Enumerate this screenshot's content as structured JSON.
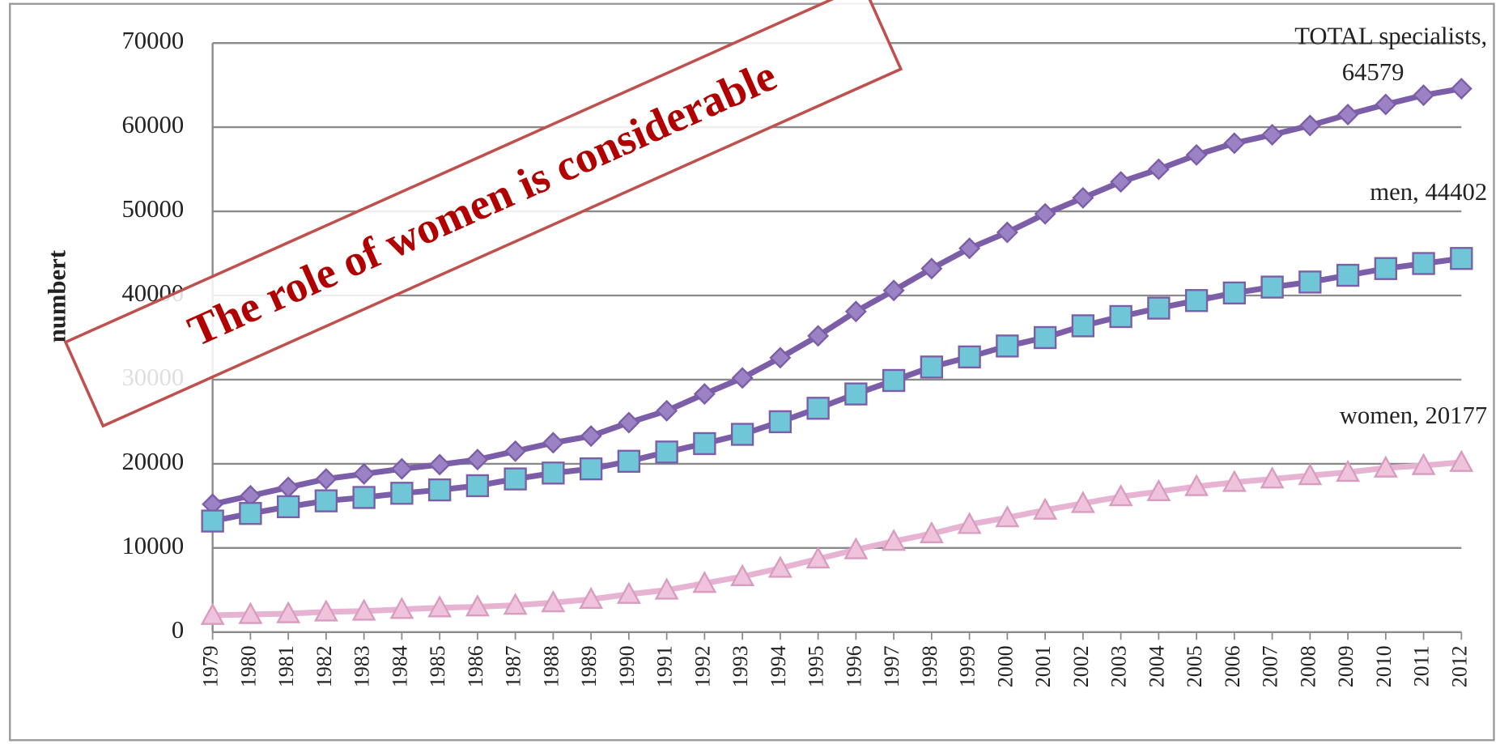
{
  "chart_data": {
    "type": "line",
    "title": "The role of women is considerable",
    "y_label": "numbert",
    "categories": [
      "1979",
      "1980",
      "1981",
      "1982",
      "1983",
      "1984",
      "1985",
      "1986",
      "1987",
      "1988",
      "1989",
      "1990",
      "1991",
      "1992",
      "1993",
      "1994",
      "1995",
      "1996",
      "1997",
      "1998",
      "1999",
      "2000",
      "2001",
      "2002",
      "2003",
      "2004",
      "2005",
      "2006",
      "2007",
      "2008",
      "2009",
      "2010",
      "2011",
      "2012"
    ],
    "series": [
      {
        "color": "#7b5ea7",
        "marker": "diamond",
        "marker_color": "#9b82c4",
        "values": [
          15200,
          16200,
          17200,
          18200,
          18800,
          19400,
          19900,
          20500,
          21500,
          22500,
          23300,
          24900,
          26300,
          28300,
          30200,
          32600,
          35200,
          38100,
          40600,
          43200,
          45600,
          47500,
          49700,
          51600,
          53500,
          55000,
          56700,
          58100,
          59100,
          60200,
          61500,
          62700,
          63800,
          64579
        ]
      },
      {
        "color": "#7b5ea7",
        "marker": "square",
        "marker_color": "#6ec6d6",
        "values": [
          13200,
          14100,
          14900,
          15600,
          16000,
          16500,
          16900,
          17400,
          18200,
          18900,
          19400,
          20300,
          21400,
          22400,
          23500,
          25000,
          26600,
          28300,
          29900,
          31500,
          32700,
          34000,
          35000,
          36400,
          37500,
          38500,
          39400,
          40300,
          41000,
          41600,
          42400,
          43200,
          43800,
          44402
        ]
      },
      {
        "color": "#e7b3d3",
        "marker": "triangle",
        "marker_color": "#f0c3dc",
        "values": [
          2000,
          2100,
          2200,
          2400,
          2500,
          2700,
          2900,
          3000,
          3200,
          3500,
          3900,
          4500,
          5000,
          5800,
          6600,
          7600,
          8700,
          9800,
          10800,
          11700,
          12800,
          13600,
          14500,
          15300,
          16100,
          16700,
          17300,
          17800,
          18200,
          18600,
          19000,
          19500,
          19800,
          20177
        ]
      }
    ],
    "annotations": [
      "TOTAL  specialists,",
      "64579",
      "men, 44402",
      "women, 20177"
    ],
    "ylim": [
      0,
      70000
    ],
    "yticks": [
      0,
      10000,
      20000,
      30000,
      40000,
      50000,
      60000,
      70000
    ],
    "grid": true
  }
}
